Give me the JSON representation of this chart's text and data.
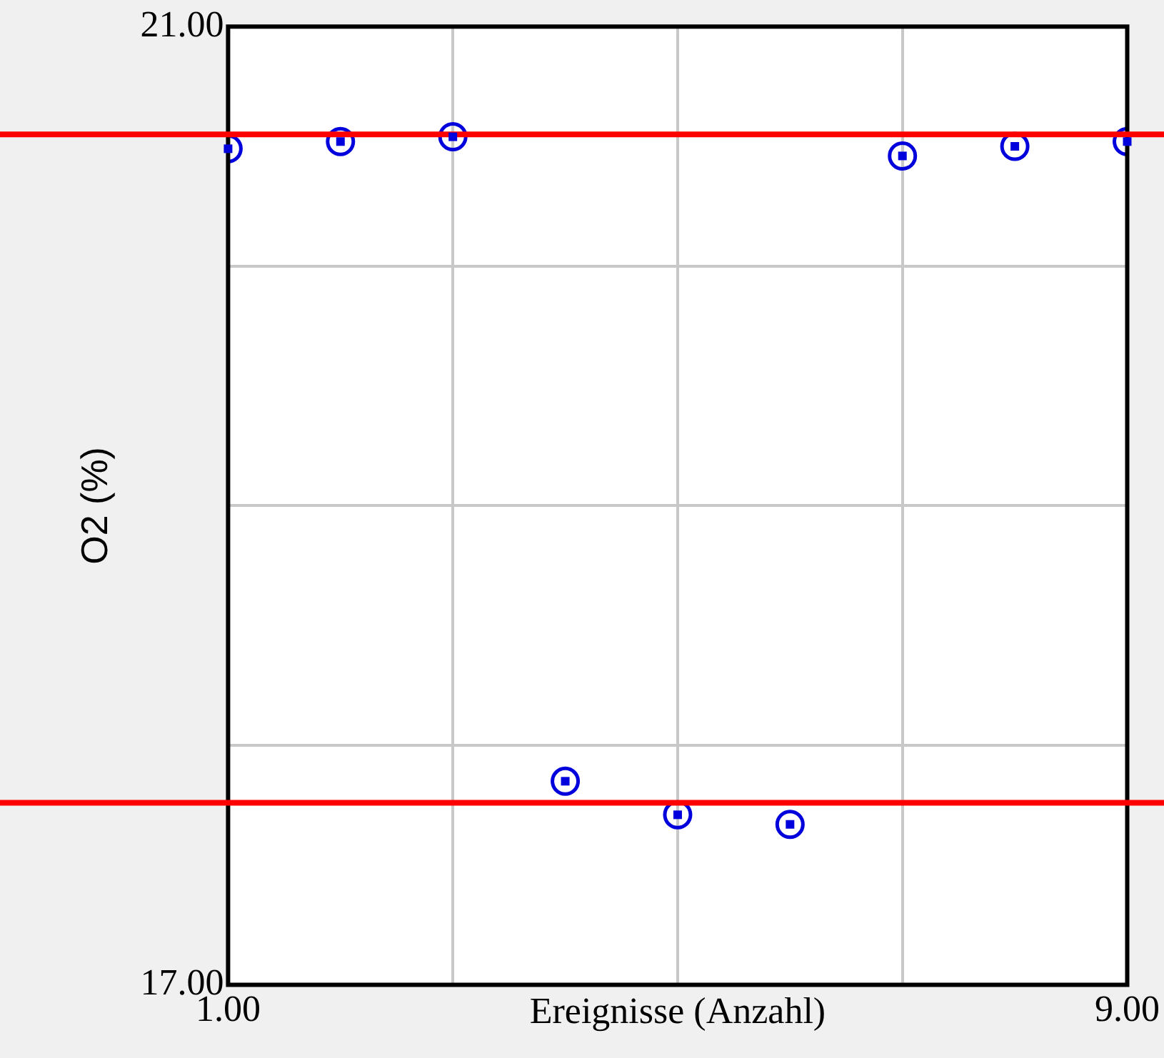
{
  "chart_data": {
    "type": "scatter",
    "xlabel": "Ereignisse (Anzahl)",
    "ylabel": "O2 (%)",
    "x": [
      1,
      2,
      3,
      4,
      5,
      6,
      7,
      8,
      9
    ],
    "series": [
      {
        "color": "#0000dd",
        "values": [
          20.49,
          20.52,
          20.54,
          17.85,
          17.71,
          17.67,
          20.46,
          20.5,
          20.52
        ]
      }
    ],
    "xlim": [
      1,
      9
    ],
    "xticks": [
      {
        "value": 1,
        "label": "1.00"
      },
      {
        "value": 3,
        "label": null
      },
      {
        "value": 5,
        "label": null
      },
      {
        "value": 7,
        "label": null
      },
      {
        "value": 9,
        "label": "9.00"
      }
    ],
    "ylim": [
      17,
      21
    ],
    "yticks": [
      {
        "value": 17,
        "label": "17.00"
      },
      {
        "value": 18,
        "label": null
      },
      {
        "value": 19,
        "label": null
      },
      {
        "value": 20,
        "label": null
      },
      {
        "value": 21,
        "label": "21.00"
      }
    ],
    "ref_lines": [
      {
        "axis": "y",
        "value": 20.55,
        "color": "#ff0000"
      },
      {
        "axis": "y",
        "value": 17.76,
        "color": "#ff0000"
      }
    ],
    "grid": true,
    "legend": false,
    "marker": "circle"
  }
}
